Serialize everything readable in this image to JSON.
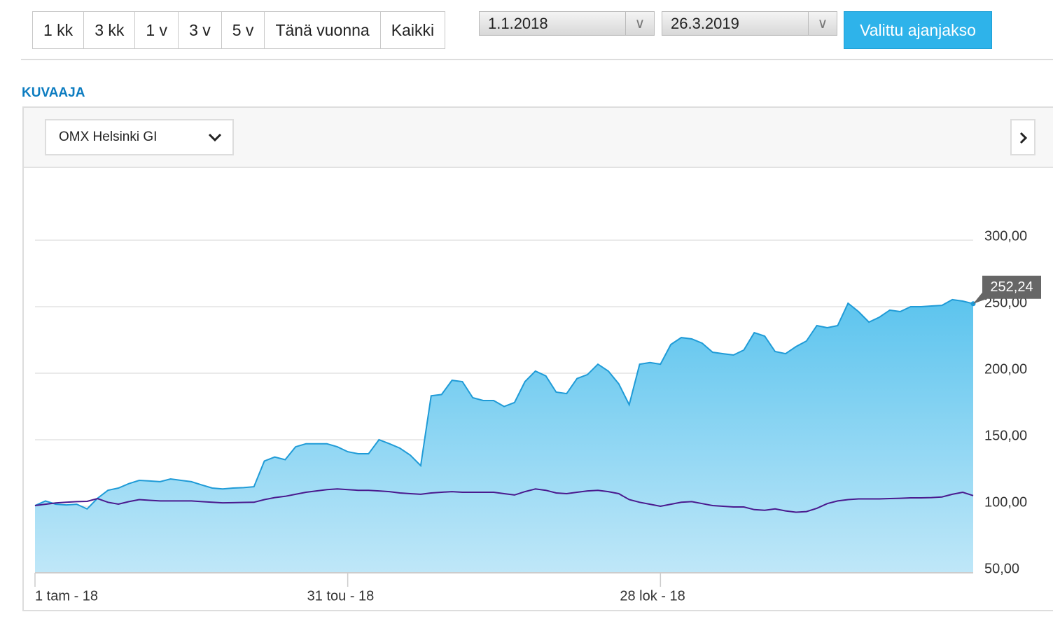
{
  "toolbar": {
    "periods": [
      "1 kk",
      "3 kk",
      "1 v",
      "3 v",
      "5 v",
      "Tänä vuonna",
      "Kaikki"
    ],
    "start_date": "1.1.2018",
    "end_date": "26.3.2019",
    "apply": "Valittu ajanjakso"
  },
  "section_title": "KUVAAJA",
  "index_selector": "OMX Helsinki GI",
  "chart_data": {
    "type": "area",
    "categories": [
      "1 tam - 18",
      null,
      null,
      null,
      null,
      null,
      null,
      null,
      null,
      null,
      null,
      null,
      null,
      null,
      null,
      null,
      null,
      null,
      null,
      null,
      null,
      null,
      null,
      null,
      null,
      null,
      null,
      null,
      null,
      null,
      "31 tou - 18",
      null,
      null,
      null,
      null,
      null,
      null,
      null,
      null,
      null,
      null,
      null,
      null,
      null,
      null,
      null,
      null,
      null,
      null,
      null,
      null,
      null,
      null,
      null,
      null,
      null,
      null,
      null,
      null,
      null,
      "28 lok - 18",
      null,
      null,
      null,
      null,
      null,
      null,
      null,
      null,
      null,
      null,
      null,
      null,
      null,
      null,
      null,
      null,
      null,
      null,
      null,
      null,
      null,
      null,
      null,
      null,
      null,
      null,
      null,
      null,
      null,
      null
    ],
    "series": [
      {
        "color": "#1f9bd7",
        "fill": true,
        "values": [
          100.5,
          104,
          101.5,
          101,
          101.5,
          98,
          106,
          112,
          113.7,
          117,
          119.5,
          119,
          118.5,
          120.5,
          119.5,
          118.5,
          116,
          113.7,
          113,
          113.7,
          114,
          114.7,
          134,
          137,
          135,
          144.7,
          147,
          147,
          147,
          144.7,
          141,
          139.5,
          139.5,
          150,
          147,
          143.7,
          138.4,
          130.5,
          183,
          184,
          194.7,
          193.7,
          181.6,
          179.5,
          179.5,
          175,
          178,
          193.7,
          201.6,
          198,
          185.8,
          184.7,
          196,
          199,
          206.8,
          201.6,
          192,
          176.3,
          206.8,
          208,
          206.8,
          221.6,
          226.8,
          225.8,
          222.6,
          215.8,
          214.7,
          213.7,
          217.4,
          230.5,
          227.9,
          216.3,
          214.7,
          220,
          224.2,
          235.8,
          234.2,
          235.8,
          252.6,
          246.3,
          238.4,
          242.1,
          247.4,
          246.3,
          250,
          250,
          250.5,
          251,
          255.3,
          254.2,
          252.24
        ],
        "value_labels": [
          null,
          null,
          null,
          null,
          null,
          null,
          null,
          null,
          null,
          null,
          null,
          null,
          null,
          null,
          null,
          null,
          null,
          null,
          null,
          null,
          null,
          null,
          null,
          null,
          null,
          null,
          null,
          null,
          null,
          null,
          null,
          null,
          null,
          null,
          null,
          null,
          null,
          null,
          null,
          null,
          null,
          null,
          null,
          null,
          null,
          null,
          null,
          null,
          null,
          null,
          null,
          null,
          null,
          null,
          null,
          null,
          null,
          null,
          null,
          null,
          null,
          null,
          null,
          null,
          null,
          null,
          null,
          null,
          null,
          null,
          null,
          null,
          null,
          null,
          null,
          null,
          null,
          null,
          null,
          null,
          null,
          null,
          null,
          null,
          null,
          null,
          null,
          null,
          null,
          null,
          "252,24"
        ]
      },
      {
        "color": "#4a1a8e",
        "fill": false,
        "values": [
          100.5,
          101.5,
          102.5,
          103,
          103.5,
          103.7,
          105.8,
          103,
          101.6,
          103.5,
          105,
          104.5,
          104,
          104,
          104,
          104,
          103.5,
          103,
          102.6,
          102.7,
          102.9,
          103,
          105,
          106.5,
          107.5,
          109,
          110.5,
          111.5,
          112.5,
          113,
          112.5,
          112,
          112,
          111.5,
          111,
          110,
          109.5,
          109,
          110,
          110.5,
          111,
          110.5,
          110.5,
          110.5,
          110.5,
          109.5,
          108.5,
          111,
          113,
          112,
          110,
          109.5,
          110.5,
          111.5,
          112,
          111,
          109.5,
          105,
          103,
          101.5,
          100,
          101.5,
          103,
          103.5,
          102,
          100.5,
          100,
          99.5,
          99.5,
          97.5,
          97,
          98,
          96.5,
          95.5,
          96,
          98.5,
          102,
          104,
          105,
          105.5,
          105.5,
          105.5,
          105.8,
          106,
          106.3,
          106.3,
          106.5,
          107,
          109,
          110.5,
          108
        ]
      }
    ],
    "ylim": [
      50,
      300
    ],
    "yticks": [
      {
        "value": 50,
        "label": "50,00"
      },
      {
        "value": 100,
        "label": "100,00"
      },
      {
        "value": 150,
        "label": "150,00"
      },
      {
        "value": 200,
        "label": "200,00"
      },
      {
        "value": 250,
        "label": "250,00"
      },
      {
        "value": 300,
        "label": "300,00"
      }
    ],
    "grid": true
  }
}
